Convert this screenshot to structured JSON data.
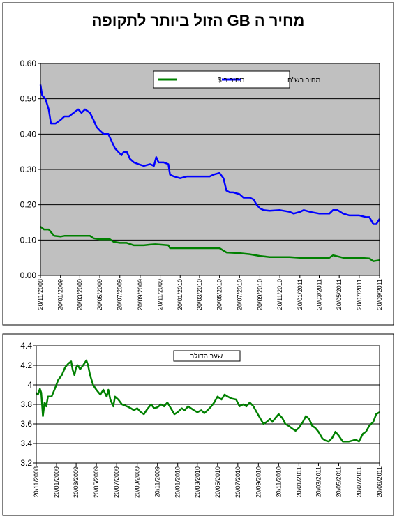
{
  "chart_data": [
    {
      "type": "line",
      "title": "מחיר ה GB הזול ביותר לתקופה",
      "xlabel": "",
      "ylabel": "",
      "ylim": [
        0,
        0.6
      ],
      "yticks": [
        "0.00",
        "0.10",
        "0.20",
        "0.30",
        "0.40",
        "0.50",
        "0.60"
      ],
      "x_range": [
        "20/11/2008",
        "20/09/2011"
      ],
      "xtick_labels": [
        "20/11/2008",
        "20/01/2009",
        "20/03/2009",
        "20/05/2009",
        "20/07/2009",
        "20/09/2009",
        "20/11/2009",
        "20/01/2010",
        "20/03/2010",
        "20/05/2010",
        "20/07/2010",
        "20/09/2010",
        "20/11/2010",
        "20/01/2011",
        "20/03/2011",
        "20/05/2011",
        "20/07/2011",
        "20/09/2011"
      ],
      "grid": "horizontal",
      "legend": "top-center",
      "plot_background": "#c0c0c0",
      "series": [
        {
          "name": "מחיר בש\"ח",
          "color": "#0000ff",
          "points": [
            [
              "2008-11-20",
              0.54
            ],
            [
              "2008-11-25",
              0.51
            ],
            [
              "2008-12-05",
              0.5
            ],
            [
              "2008-12-15",
              0.47
            ],
            [
              "2008-12-22",
              0.43
            ],
            [
              "2009-01-05",
              0.43
            ],
            [
              "2009-01-20",
              0.44
            ],
            [
              "2009-02-01",
              0.45
            ],
            [
              "2009-02-15",
              0.45
            ],
            [
              "2009-03-01",
              0.46
            ],
            [
              "2009-03-15",
              0.47
            ],
            [
              "2009-03-25",
              0.46
            ],
            [
              "2009-04-05",
              0.47
            ],
            [
              "2009-04-20",
              0.46
            ],
            [
              "2009-05-01",
              0.44
            ],
            [
              "2009-05-10",
              0.42
            ],
            [
              "2009-05-20",
              0.41
            ],
            [
              "2009-06-01",
              0.4
            ],
            [
              "2009-06-15",
              0.4
            ],
            [
              "2009-06-25",
              0.38
            ],
            [
              "2009-07-05",
              0.36
            ],
            [
              "2009-07-15",
              0.35
            ],
            [
              "2009-07-25",
              0.34
            ],
            [
              "2009-08-01",
              0.35
            ],
            [
              "2009-08-10",
              0.35
            ],
            [
              "2009-08-20",
              0.33
            ],
            [
              "2009-09-01",
              0.32
            ],
            [
              "2009-09-15",
              0.315
            ],
            [
              "2009-10-01",
              0.31
            ],
            [
              "2009-10-20",
              0.315
            ],
            [
              "2009-11-01",
              0.31
            ],
            [
              "2009-11-08",
              0.335
            ],
            [
              "2009-11-15",
              0.32
            ],
            [
              "2009-12-01",
              0.32
            ],
            [
              "2009-12-15",
              0.315
            ],
            [
              "2009-12-20",
              0.285
            ],
            [
              "2010-01-01",
              0.28
            ],
            [
              "2010-01-20",
              0.275
            ],
            [
              "2010-02-10",
              0.28
            ],
            [
              "2010-03-01",
              0.28
            ],
            [
              "2010-04-01",
              0.28
            ],
            [
              "2010-04-20",
              0.28
            ],
            [
              "2010-05-01",
              0.285
            ],
            [
              "2010-05-20",
              0.29
            ],
            [
              "2010-06-01",
              0.275
            ],
            [
              "2010-06-10",
              0.24
            ],
            [
              "2010-06-20",
              0.235
            ],
            [
              "2010-07-01",
              0.235
            ],
            [
              "2010-07-20",
              0.23
            ],
            [
              "2010-08-01",
              0.22
            ],
            [
              "2010-08-20",
              0.22
            ],
            [
              "2010-09-01",
              0.215
            ],
            [
              "2010-09-10",
              0.2
            ],
            [
              "2010-09-20",
              0.19
            ],
            [
              "2010-10-01",
              0.185
            ],
            [
              "2010-10-20",
              0.183
            ],
            [
              "2010-11-20",
              0.185
            ],
            [
              "2010-12-20",
              0.18
            ],
            [
              "2011-01-01",
              0.175
            ],
            [
              "2011-01-20",
              0.18
            ],
            [
              "2011-02-01",
              0.185
            ],
            [
              "2011-02-20",
              0.18
            ],
            [
              "2011-03-20",
              0.175
            ],
            [
              "2011-04-20",
              0.175
            ],
            [
              "2011-05-01",
              0.185
            ],
            [
              "2011-05-15",
              0.185
            ],
            [
              "2011-06-01",
              0.175
            ],
            [
              "2011-06-20",
              0.17
            ],
            [
              "2011-07-20",
              0.17
            ],
            [
              "2011-08-10",
              0.165
            ],
            [
              "2011-08-20",
              0.165
            ],
            [
              "2011-09-01",
              0.145
            ],
            [
              "2011-09-10",
              0.145
            ],
            [
              "2011-09-20",
              0.16
            ]
          ]
        },
        {
          "name": "מחיר ב $",
          "color": "#008000",
          "points": [
            [
              "2008-11-20",
              0.138
            ],
            [
              "2008-12-01",
              0.13
            ],
            [
              "2008-12-15",
              0.13
            ],
            [
              "2009-01-01",
              0.112
            ],
            [
              "2009-01-20",
              0.11
            ],
            [
              "2009-02-01",
              0.112
            ],
            [
              "2009-03-01",
              0.112
            ],
            [
              "2009-04-01",
              0.112
            ],
            [
              "2009-04-20",
              0.112
            ],
            [
              "2009-05-01",
              0.105
            ],
            [
              "2009-05-20",
              0.102
            ],
            [
              "2009-06-20",
              0.102
            ],
            [
              "2009-07-01",
              0.095
            ],
            [
              "2009-07-20",
              0.092
            ],
            [
              "2009-08-10",
              0.092
            ],
            [
              "2009-09-01",
              0.085
            ],
            [
              "2009-10-01",
              0.085
            ],
            [
              "2009-10-20",
              0.087
            ],
            [
              "2009-11-05",
              0.088
            ],
            [
              "2009-11-20",
              0.087
            ],
            [
              "2009-12-15",
              0.085
            ],
            [
              "2009-12-20",
              0.077
            ],
            [
              "2010-01-20",
              0.077
            ],
            [
              "2010-03-20",
              0.077
            ],
            [
              "2010-05-20",
              0.077
            ],
            [
              "2010-06-10",
              0.065
            ],
            [
              "2010-07-20",
              0.063
            ],
            [
              "2010-08-20",
              0.06
            ],
            [
              "2010-09-20",
              0.055
            ],
            [
              "2010-10-20",
              0.052
            ],
            [
              "2010-12-20",
              0.052
            ],
            [
              "2011-01-20",
              0.05
            ],
            [
              "2011-03-20",
              0.05
            ],
            [
              "2011-04-20",
              0.05
            ],
            [
              "2011-05-01",
              0.057
            ],
            [
              "2011-06-01",
              0.05
            ],
            [
              "2011-07-20",
              0.05
            ],
            [
              "2011-08-20",
              0.048
            ],
            [
              "2011-09-01",
              0.04
            ],
            [
              "2011-09-20",
              0.043
            ]
          ]
        }
      ]
    },
    {
      "type": "line",
      "title": "",
      "xlabel": "",
      "ylabel": "",
      "ylim": [
        3.2,
        4.4
      ],
      "yticks": [
        "3.2",
        "3.4",
        "3.6",
        "3.8",
        "4",
        "4.2",
        "4.4"
      ],
      "x_range": [
        "20/11/2008",
        "20/09/2011"
      ],
      "xtick_labels": [
        "20/11/2008",
        "20/01/2009",
        "20/03/2009",
        "20/05/2009",
        "20/07/2009",
        "20/09/2009",
        "20/11/2009",
        "20/01/2010",
        "20/03/2010",
        "20/05/2010",
        "20/07/2010",
        "20/09/2010",
        "20/11/2010",
        "20/01/2011",
        "20/03/2011",
        "20/05/2011",
        "20/07/2011",
        "20/09/2011"
      ],
      "grid": "horizontal",
      "legend": "top-center",
      "plot_background": "#ffffff",
      "series": [
        {
          "name": "שער הדולר",
          "color": "#008000",
          "points": [
            [
              "2008-11-20",
              3.92
            ],
            [
              "2008-11-25",
              3.9
            ],
            [
              "2008-12-01",
              3.96
            ],
            [
              "2008-12-05",
              3.92
            ],
            [
              "2008-12-10",
              3.68
            ],
            [
              "2008-12-15",
              3.82
            ],
            [
              "2008-12-20",
              3.78
            ],
            [
              "2008-12-25",
              3.88
            ],
            [
              "2009-01-05",
              3.88
            ],
            [
              "2009-01-15",
              3.96
            ],
            [
              "2009-01-25",
              4.05
            ],
            [
              "2009-02-05",
              4.1
            ],
            [
              "2009-02-15",
              4.18
            ],
            [
              "2009-02-25",
              4.22
            ],
            [
              "2009-03-05",
              4.24
            ],
            [
              "2009-03-10",
              4.15
            ],
            [
              "2009-03-15",
              4.1
            ],
            [
              "2009-03-20",
              4.18
            ],
            [
              "2009-03-25",
              4.2
            ],
            [
              "2009-04-01",
              4.16
            ],
            [
              "2009-04-10",
              4.2
            ],
            [
              "2009-04-20",
              4.25
            ],
            [
              "2009-04-25",
              4.2
            ],
            [
              "2009-05-01",
              4.1
            ],
            [
              "2009-05-10",
              4.0
            ],
            [
              "2009-05-20",
              3.95
            ],
            [
              "2009-06-01",
              3.9
            ],
            [
              "2009-06-10",
              3.95
            ],
            [
              "2009-06-20",
              3.88
            ],
            [
              "2009-06-25",
              3.95
            ],
            [
              "2009-07-01",
              3.85
            ],
            [
              "2009-07-10",
              3.78
            ],
            [
              "2009-07-15",
              3.88
            ],
            [
              "2009-07-25",
              3.85
            ],
            [
              "2009-08-05",
              3.8
            ],
            [
              "2009-08-20",
              3.78
            ],
            [
              "2009-09-01",
              3.76
            ],
            [
              "2009-09-10",
              3.74
            ],
            [
              "2009-09-20",
              3.76
            ],
            [
              "2009-10-01",
              3.72
            ],
            [
              "2009-10-10",
              3.7
            ],
            [
              "2009-10-20",
              3.75
            ],
            [
              "2009-11-01",
              3.8
            ],
            [
              "2009-11-10",
              3.76
            ],
            [
              "2009-11-20",
              3.77
            ],
            [
              "2009-12-01",
              3.8
            ],
            [
              "2009-12-10",
              3.78
            ],
            [
              "2009-12-20",
              3.82
            ],
            [
              "2010-01-01",
              3.75
            ],
            [
              "2010-01-10",
              3.7
            ],
            [
              "2010-01-20",
              3.72
            ],
            [
              "2010-02-01",
              3.76
            ],
            [
              "2010-02-10",
              3.74
            ],
            [
              "2010-02-20",
              3.78
            ],
            [
              "2010-03-01",
              3.76
            ],
            [
              "2010-03-10",
              3.74
            ],
            [
              "2010-03-20",
              3.72
            ],
            [
              "2010-04-01",
              3.74
            ],
            [
              "2010-04-10",
              3.71
            ],
            [
              "2010-04-20",
              3.74
            ],
            [
              "2010-05-01",
              3.78
            ],
            [
              "2010-05-10",
              3.82
            ],
            [
              "2010-05-20",
              3.88
            ],
            [
              "2010-06-01",
              3.85
            ],
            [
              "2010-06-10",
              3.9
            ],
            [
              "2010-06-20",
              3.88
            ],
            [
              "2010-07-01",
              3.86
            ],
            [
              "2010-07-15",
              3.85
            ],
            [
              "2010-07-25",
              3.78
            ],
            [
              "2010-08-05",
              3.8
            ],
            [
              "2010-08-15",
              3.78
            ],
            [
              "2010-08-25",
              3.82
            ],
            [
              "2010-09-05",
              3.78
            ],
            [
              "2010-09-15",
              3.72
            ],
            [
              "2010-09-25",
              3.66
            ],
            [
              "2010-10-05",
              3.6
            ],
            [
              "2010-10-15",
              3.62
            ],
            [
              "2010-10-25",
              3.65
            ],
            [
              "2010-11-01",
              3.62
            ],
            [
              "2010-11-10",
              3.66
            ],
            [
              "2010-11-20",
              3.7
            ],
            [
              "2010-12-01",
              3.66
            ],
            [
              "2010-12-10",
              3.6
            ],
            [
              "2010-12-20",
              3.58
            ],
            [
              "2011-01-01",
              3.55
            ],
            [
              "2011-01-10",
              3.53
            ],
            [
              "2011-01-20",
              3.56
            ],
            [
              "2011-02-01",
              3.62
            ],
            [
              "2011-02-10",
              3.68
            ],
            [
              "2011-02-20",
              3.65
            ],
            [
              "2011-03-01",
              3.58
            ],
            [
              "2011-03-10",
              3.56
            ],
            [
              "2011-03-20",
              3.52
            ],
            [
              "2011-04-01",
              3.45
            ],
            [
              "2011-04-10",
              3.43
            ],
            [
              "2011-04-20",
              3.42
            ],
            [
              "2011-05-01",
              3.46
            ],
            [
              "2011-05-10",
              3.52
            ],
            [
              "2011-05-20",
              3.48
            ],
            [
              "2011-06-01",
              3.42
            ],
            [
              "2011-06-20",
              3.42
            ],
            [
              "2011-07-01",
              3.43
            ],
            [
              "2011-07-10",
              3.44
            ],
            [
              "2011-07-20",
              3.42
            ],
            [
              "2011-08-01",
              3.5
            ],
            [
              "2011-08-10",
              3.52
            ],
            [
              "2011-08-20",
              3.58
            ],
            [
              "2011-09-01",
              3.62
            ],
            [
              "2011-09-10",
              3.7
            ],
            [
              "2011-09-20",
              3.72
            ]
          ]
        }
      ]
    }
  ],
  "colors": {
    "frame": "#000000",
    "gridline": "#000000"
  }
}
